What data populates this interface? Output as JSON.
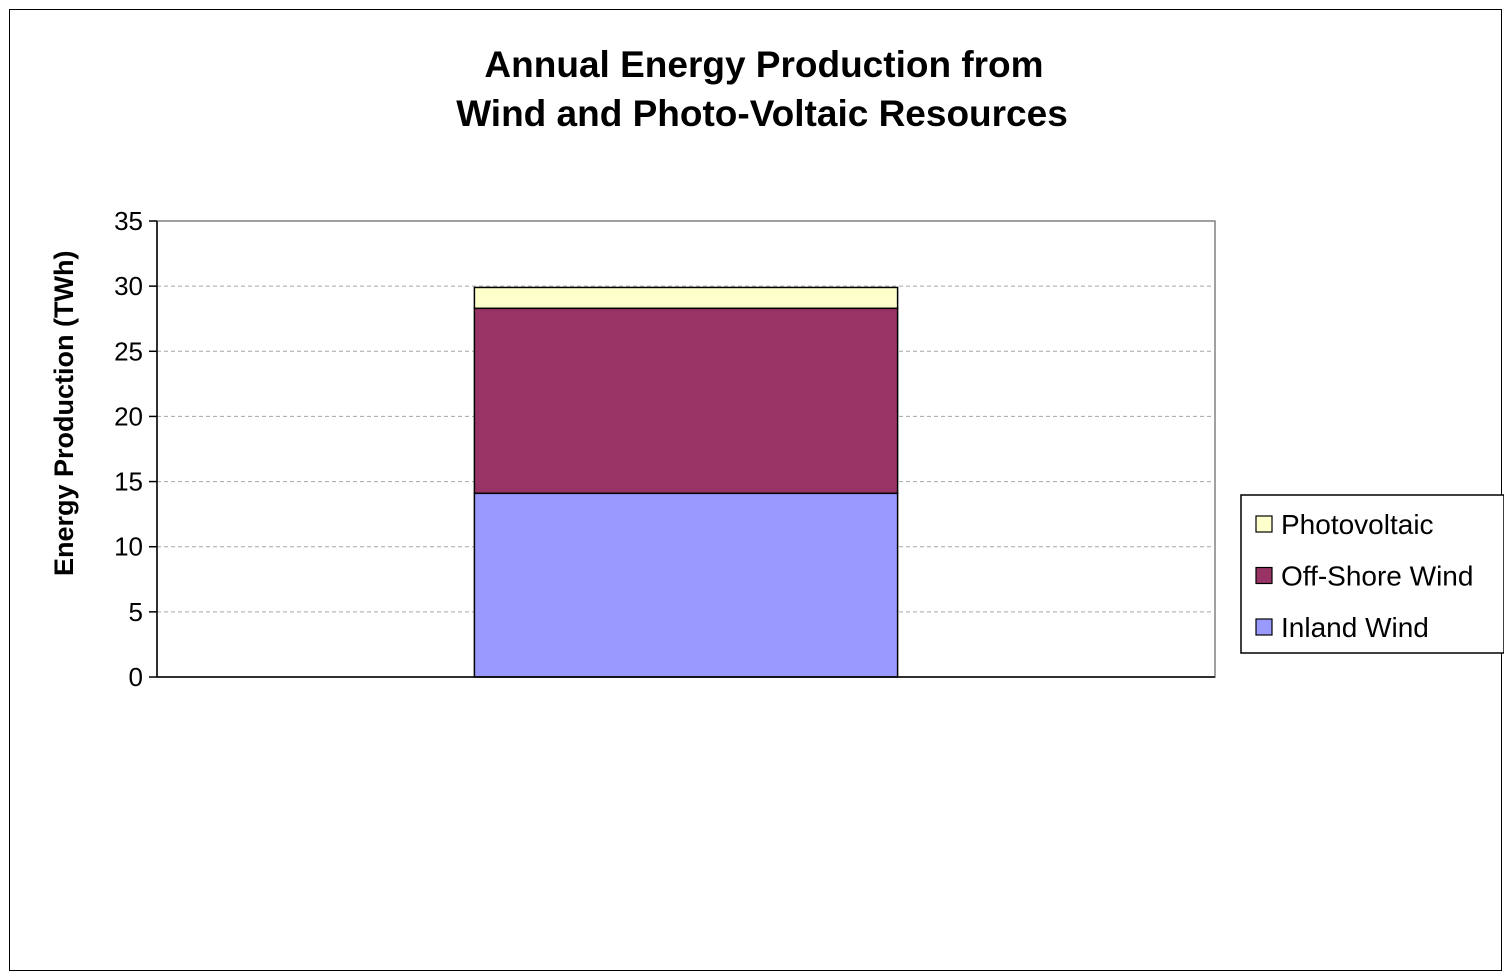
{
  "chart_data": {
    "type": "bar",
    "stacked": true,
    "title": [
      "Annual Energy Production from",
      "Wind and Photo-Voltaic Resources"
    ],
    "xlabel": "",
    "ylabel": "Energy Production (TWh)",
    "ylim": [
      0,
      35
    ],
    "yticks": [
      "0",
      "5",
      "10",
      "15",
      "20",
      "25",
      "30",
      "35"
    ],
    "categories": [
      ""
    ],
    "series": [
      {
        "name": "Inland Wind",
        "values": [
          14.1
        ],
        "color": "#9999ff"
      },
      {
        "name": "Off-Shore Wind",
        "values": [
          14.2
        ],
        "color": "#993366"
      },
      {
        "name": "Photovoltaic",
        "values": [
          1.6
        ],
        "color": "#ffffcc"
      }
    ],
    "legend": {
      "position": "right",
      "order": [
        "Photovoltaic",
        "Off-Shore Wind",
        "Inland Wind"
      ]
    },
    "grid": {
      "y": true,
      "style": "dashed"
    },
    "plot_background": "#ffffff",
    "border_color": "#000000"
  }
}
